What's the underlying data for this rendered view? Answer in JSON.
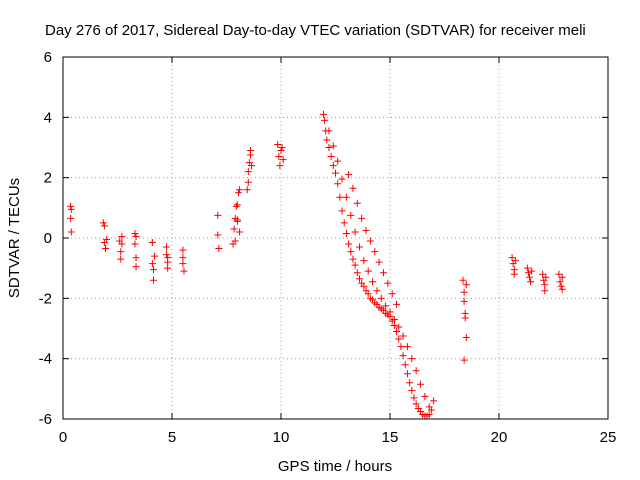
{
  "colors": {
    "series": "#ff0000",
    "grid": "#a0a0a0",
    "axis": "#000000"
  },
  "chart_data": {
    "type": "scatter",
    "title": "Day 276 of 2017, Sidereal Day-to-day VTEC variation (SDTVAR) for receiver meli",
    "xlabel": "GPS time / hours",
    "ylabel": "SDTVAR / TECUs",
    "xlim": [
      0,
      25
    ],
    "ylim": [
      -6,
      6
    ],
    "xticks": [
      "0",
      "5",
      "10",
      "15",
      "20",
      "25"
    ],
    "yticks": [
      "-6",
      "-4",
      "-2",
      "0",
      "2",
      "4",
      "6"
    ],
    "grid": true,
    "series": [
      {
        "name": "SDTVAR",
        "marker": "plus",
        "x": [
          0.35,
          0.35,
          0.38,
          0.38,
          1.85,
          1.9,
          1.9,
          1.95,
          2.0,
          2.6,
          2.65,
          2.65,
          2.7,
          2.7,
          3.3,
          3.3,
          3.35,
          3.35,
          3.35,
          4.1,
          4.1,
          4.15,
          4.15,
          4.2,
          4.75,
          4.75,
          4.8,
          4.8,
          4.8,
          5.5,
          5.5,
          5.5,
          5.55,
          7.1,
          7.1,
          7.15,
          7.8,
          7.85,
          7.9,
          7.95,
          8.0,
          8.0,
          8.05,
          8.1,
          8.1,
          7.9,
          8.0,
          8.45,
          8.5,
          8.5,
          8.55,
          8.6,
          8.6,
          8.65,
          9.85,
          9.9,
          9.95,
          10.0,
          10.05,
          10.1,
          11.95,
          12.0,
          12.05,
          12.1,
          12.2,
          12.3,
          12.4,
          12.5,
          12.6,
          12.7,
          12.8,
          12.9,
          13.0,
          13.1,
          13.2,
          13.3,
          13.4,
          13.5,
          13.6,
          13.7,
          13.8,
          13.9,
          14.0,
          14.1,
          14.2,
          14.3,
          14.4,
          14.5,
          14.6,
          14.7,
          14.8,
          14.9,
          15.0,
          15.1,
          15.2,
          15.3,
          15.4,
          15.5,
          15.6,
          15.7,
          15.8,
          15.9,
          16.0,
          16.1,
          16.2,
          16.3,
          16.4,
          16.5,
          16.6,
          16.7,
          16.8,
          16.9,
          17.0,
          12.2,
          12.4,
          12.6,
          12.8,
          13.0,
          13.2,
          13.4,
          13.6,
          13.8,
          14.0,
          14.2,
          14.4,
          14.6,
          14.8,
          15.0,
          15.2,
          15.4,
          15.6,
          15.8,
          16.0,
          16.2,
          16.4,
          16.6,
          16.8,
          13.1,
          13.3,
          13.5,
          13.7,
          13.9,
          14.1,
          14.3,
          14.5,
          14.7,
          14.9,
          15.1,
          15.3,
          18.35,
          18.4,
          18.4,
          18.45,
          18.45,
          18.5,
          18.4,
          18.5,
          20.6,
          20.65,
          20.7,
          20.7,
          20.75,
          21.3,
          21.35,
          21.4,
          21.45,
          21.5,
          22.0,
          22.05,
          22.1,
          22.1,
          22.15,
          22.75,
          22.8,
          22.85,
          22.9,
          22.9
        ],
        "y": [
          1.05,
          0.65,
          0.2,
          0.95,
          0.5,
          0.4,
          -0.15,
          -0.35,
          -0.05,
          -0.1,
          -0.45,
          -0.7,
          0.05,
          -0.2,
          0.15,
          -0.2,
          -0.65,
          -0.95,
          0.05,
          -0.15,
          -0.85,
          -1.05,
          -1.4,
          -0.6,
          -0.3,
          -0.55,
          -0.8,
          -1.0,
          -0.65,
          -0.4,
          -0.65,
          -0.85,
          -1.1,
          0.75,
          0.1,
          -0.35,
          -0.2,
          0.3,
          0.65,
          1.05,
          1.1,
          0.55,
          1.5,
          1.6,
          0.2,
          -0.1,
          0.6,
          1.6,
          1.85,
          2.2,
          2.5,
          2.75,
          2.9,
          2.4,
          3.1,
          2.7,
          2.4,
          2.9,
          3.0,
          2.6,
          4.1,
          3.9,
          3.55,
          3.25,
          3.0,
          2.7,
          2.4,
          2.15,
          1.8,
          1.35,
          0.9,
          0.5,
          0.15,
          -0.2,
          -0.45,
          -0.7,
          -0.9,
          -1.15,
          -1.35,
          -1.5,
          -1.6,
          -1.75,
          -1.85,
          -2.0,
          -2.05,
          -2.15,
          -2.2,
          -2.3,
          -2.35,
          -2.4,
          -2.5,
          -2.55,
          -2.6,
          -2.75,
          -2.9,
          -3.1,
          -3.35,
          -3.6,
          -3.9,
          -4.2,
          -4.5,
          -4.8,
          -5.05,
          -5.3,
          -5.5,
          -5.65,
          -5.75,
          -5.85,
          -5.9,
          -5.9,
          -5.85,
          -5.7,
          -5.4,
          3.55,
          3.05,
          2.55,
          1.95,
          1.35,
          0.75,
          0.2,
          -0.3,
          -0.75,
          -1.1,
          -1.45,
          -1.75,
          -2.0,
          -2.25,
          -2.45,
          -2.7,
          -2.95,
          -3.25,
          -3.6,
          -4.0,
          -4.4,
          -4.85,
          -5.25,
          -5.6,
          2.1,
          1.65,
          1.15,
          0.65,
          0.25,
          -0.1,
          -0.45,
          -0.8,
          -1.15,
          -1.5,
          -1.85,
          -2.2,
          -1.4,
          -1.8,
          -2.1,
          -2.5,
          -2.65,
          -3.3,
          -4.05,
          -1.55,
          -0.65,
          -0.85,
          -1.05,
          -1.2,
          -0.75,
          -1.0,
          -1.15,
          -1.3,
          -1.45,
          -1.1,
          -1.2,
          -1.4,
          -1.55,
          -1.75,
          -1.3,
          -1.2,
          -1.45,
          -1.6,
          -1.7,
          -1.3
        ]
      }
    ]
  }
}
